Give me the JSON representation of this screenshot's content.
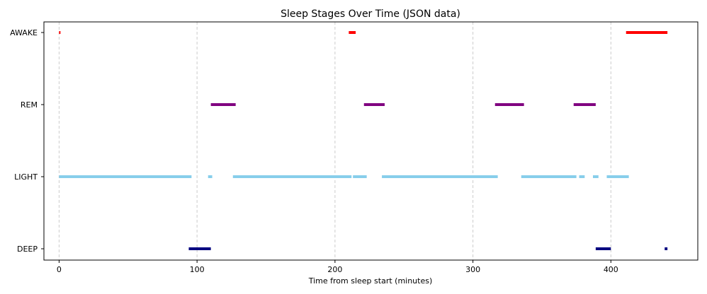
{
  "chart_data": {
    "type": "timeline",
    "title": "Sleep Stages Over Time (JSON data)",
    "xlabel": "Time from sleep start (minutes)",
    "ylabel": "",
    "xlim": [
      -11,
      463
    ],
    "x_ticks": [
      0,
      100,
      200,
      300,
      400
    ],
    "y_categories": [
      "DEEP",
      "LIGHT",
      "REM",
      "AWAKE"
    ],
    "grid": "vertical dashed",
    "colors": {
      "AWAKE": "#ff0000",
      "REM": "#800080",
      "LIGHT": "#87ceeb",
      "DEEP": "#000080"
    },
    "series": [
      {
        "stage": "AWAKE",
        "segments": [
          [
            0,
            1
          ],
          [
            210,
            215
          ],
          [
            411,
            441
          ]
        ]
      },
      {
        "stage": "REM",
        "segments": [
          [
            110,
            128
          ],
          [
            221,
            236
          ],
          [
            316,
            337
          ],
          [
            373,
            389
          ]
        ]
      },
      {
        "stage": "LIGHT",
        "segments": [
          [
            0,
            96
          ],
          [
            108,
            111
          ],
          [
            126,
            212
          ],
          [
            213,
            223
          ],
          [
            234,
            318
          ],
          [
            335,
            375
          ],
          [
            377,
            381
          ],
          [
            387,
            391
          ],
          [
            397,
            413
          ]
        ]
      },
      {
        "stage": "DEEP",
        "segments": [
          [
            94,
            110
          ],
          [
            389,
            400
          ],
          [
            439,
            441
          ]
        ]
      }
    ]
  }
}
